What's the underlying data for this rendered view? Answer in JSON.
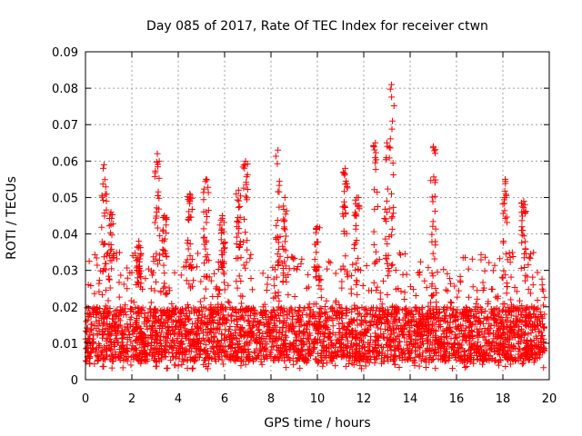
{
  "chart_data": {
    "type": "scatter",
    "title": "Day 085 of 2017, Rate Of TEC Index for receiver ctwn",
    "xlabel": "GPS time / hours",
    "ylabel": "ROTI / TECUs",
    "xlim": [
      0,
      20
    ],
    "ylim": [
      0,
      0.09
    ],
    "xticks": [
      0,
      2,
      4,
      6,
      8,
      10,
      12,
      14,
      16,
      18,
      20
    ],
    "yticks": [
      0,
      0.01,
      0.02,
      0.03,
      0.04,
      0.05,
      0.06,
      0.07,
      0.08,
      0.09
    ],
    "xtick_labels": [
      "0",
      "2",
      "4",
      "6",
      "8",
      "10",
      "12",
      "14",
      "16",
      "18",
      "20"
    ],
    "ytick_labels": [
      "0",
      "0.01",
      "0.02",
      "0.03",
      "0.04",
      "0.05",
      "0.06",
      "0.07",
      "0.08",
      "0.09"
    ],
    "grid": true,
    "marker": "+",
    "color": "#ff0000",
    "series": [
      {
        "name": "ROTI",
        "x_range": [
          0,
          19.8
        ],
        "baseline_band": [
          0.005,
          0.02
        ],
        "typical_max": 0.035,
        "spikes": [
          {
            "x": 0.8,
            "peak": 0.059
          },
          {
            "x": 1.1,
            "peak": 0.046
          },
          {
            "x": 2.3,
            "peak": 0.038
          },
          {
            "x": 3.1,
            "peak": 0.062
          },
          {
            "x": 3.4,
            "peak": 0.045
          },
          {
            "x": 4.5,
            "peak": 0.051
          },
          {
            "x": 5.2,
            "peak": 0.055
          },
          {
            "x": 5.9,
            "peak": 0.045
          },
          {
            "x": 6.6,
            "peak": 0.052
          },
          {
            "x": 6.9,
            "peak": 0.06
          },
          {
            "x": 8.3,
            "peak": 0.063
          },
          {
            "x": 8.6,
            "peak": 0.05
          },
          {
            "x": 10.0,
            "peak": 0.042
          },
          {
            "x": 11.2,
            "peak": 0.058
          },
          {
            "x": 11.7,
            "peak": 0.05
          },
          {
            "x": 12.5,
            "peak": 0.065
          },
          {
            "x": 13.0,
            "peak": 0.065
          },
          {
            "x": 13.2,
            "peak": 0.081
          },
          {
            "x": 15.0,
            "peak": 0.064
          },
          {
            "x": 18.1,
            "peak": 0.055
          },
          {
            "x": 18.9,
            "peak": 0.049
          }
        ]
      }
    ]
  }
}
